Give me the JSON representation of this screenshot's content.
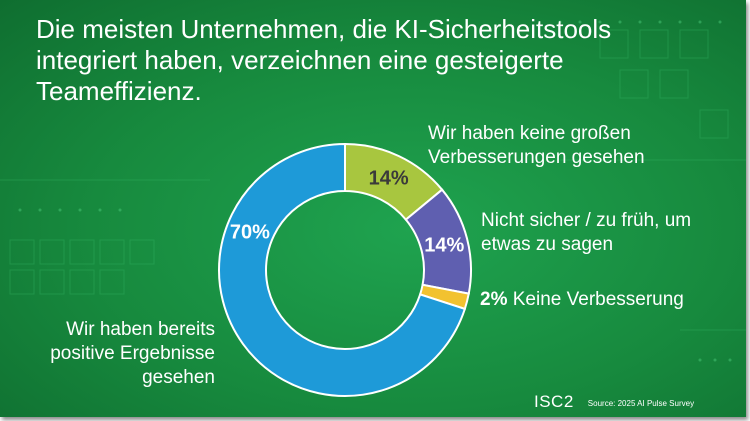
{
  "title": "Die meisten Unternehmen, die KI-Sicherheitstools integriert haben, verzeichnen eine gesteigerte Teameffizienz.",
  "chart_data": {
    "type": "pie",
    "donut": true,
    "slices": [
      {
        "label": "Wir haben keine großen Verbesserungen gesehen",
        "value": 14,
        "value_label": "14%",
        "color": "#a8c63f"
      },
      {
        "label": "Nicht sicher / zu früh, um etwas zu sagen",
        "value": 14,
        "value_label": "14%",
        "color": "#5f5fb0"
      },
      {
        "label": "Keine Verbesserung",
        "value": 2,
        "value_label": "2%",
        "color": "#f2c230"
      },
      {
        "label": "Wir haben bereits positive Ergebnisse gesehen",
        "value": 70,
        "value_label": "70%",
        "color": "#1e9ad8"
      }
    ]
  },
  "labels": {
    "slice_a": "Wir haben keine großen Verbesserungen gesehen",
    "slice_b": "Nicht sicher / zu früh, um etwas zu sagen",
    "slice_c_pct": "2%",
    "slice_c_text": " Keine Verbesserung",
    "slice_d": "Wir haben bereits positive Ergebnisse gesehen"
  },
  "footer": {
    "logo": "ISC2",
    "source": "Source: 2025 AI Pulse Survey"
  }
}
